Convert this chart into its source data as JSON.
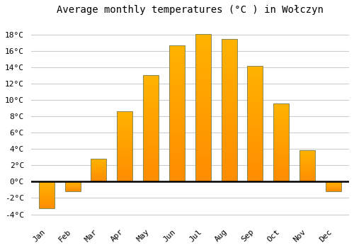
{
  "title": "Average monthly temperatures (°C ) in Wołczyn",
  "months": [
    "Jan",
    "Feb",
    "Mar",
    "Apr",
    "May",
    "Jun",
    "Jul",
    "Aug",
    "Sep",
    "Oct",
    "Nov",
    "Dec"
  ],
  "temperatures": [
    -3.3,
    -1.2,
    2.8,
    8.6,
    13.1,
    16.7,
    18.1,
    17.5,
    14.2,
    9.6,
    3.9,
    -1.2
  ],
  "bar_color_top": "#FFB300",
  "bar_color_bottom": "#FF8C00",
  "bar_edge_color": "#888855",
  "background_color": "#FFFFFF",
  "plot_bg_color": "#FFFFFF",
  "grid_color": "#CCCCCC",
  "ylim": [
    -5,
    20
  ],
  "yticks": [
    -4,
    -2,
    0,
    2,
    4,
    6,
    8,
    10,
    12,
    14,
    16,
    18
  ],
  "ytick_labels": [
    "-4°C",
    "-2°C",
    "0°C",
    "2°C",
    "4°C",
    "6°C",
    "8°C",
    "10°C",
    "12°C",
    "14°C",
    "16°C",
    "18°C"
  ],
  "title_fontsize": 10,
  "tick_fontsize": 8,
  "font_family": "monospace",
  "bar_width": 0.6
}
